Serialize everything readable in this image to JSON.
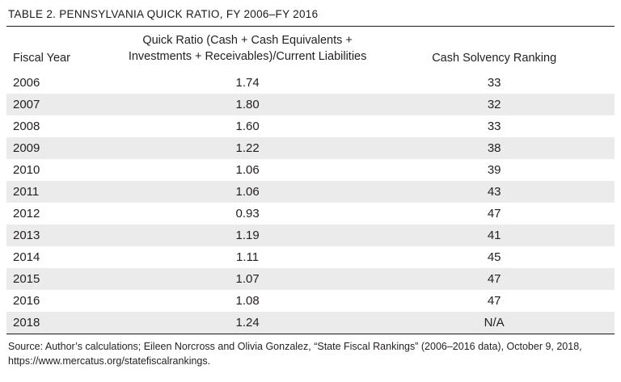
{
  "table": {
    "title": "TABLE 2. PENNSYLVANIA QUICK RATIO, FY 2006–FY 2016",
    "source": "Source: Author’s calculations; Eileen Norcross and Olivia Gonzalez, “State Fiscal Rankings” (2006–2016 data), October 9, 2018, https://www.mercatus.org/statefiscalrankings."
  },
  "chart_data": {
    "type": "table",
    "title": "TABLE 2. PENNSYLVANIA QUICK RATIO, FY 2006–FY 2016",
    "columns": [
      "Fiscal Year",
      "Quick Ratio (Cash + Cash Equivalents + Investments + Receivables)/Current Liabilities",
      "Cash Solvency Ranking"
    ],
    "rows": [
      [
        "2006",
        "1.74",
        "33"
      ],
      [
        "2007",
        "1.80",
        "32"
      ],
      [
        "2008",
        "1.60",
        "33"
      ],
      [
        "2009",
        "1.22",
        "38"
      ],
      [
        "2010",
        "1.06",
        "39"
      ],
      [
        "2011",
        "1.06",
        "43"
      ],
      [
        "2012",
        "0.93",
        "47"
      ],
      [
        "2013",
        "1.19",
        "41"
      ],
      [
        "2014",
        "1.11",
        "45"
      ],
      [
        "2015",
        "1.07",
        "47"
      ],
      [
        "2016",
        "1.08",
        "47"
      ],
      [
        "2018",
        "1.24",
        "N/A"
      ]
    ],
    "series": [
      {
        "name": "Quick Ratio",
        "x": [
          2006,
          2007,
          2008,
          2009,
          2010,
          2011,
          2012,
          2013,
          2014,
          2015,
          2016,
          2018
        ],
        "values": [
          1.74,
          1.8,
          1.6,
          1.22,
          1.06,
          1.06,
          0.93,
          1.19,
          1.11,
          1.07,
          1.08,
          1.24
        ]
      },
      {
        "name": "Cash Solvency Ranking",
        "x": [
          2006,
          2007,
          2008,
          2009,
          2010,
          2011,
          2012,
          2013,
          2014,
          2015,
          2016
        ],
        "values": [
          33,
          32,
          33,
          38,
          39,
          43,
          47,
          41,
          45,
          47,
          47
        ]
      }
    ],
    "layout": {
      "zebra_striping": true,
      "stripe_color": "#ebebeb",
      "rule_color": "#1a1a1a"
    }
  }
}
